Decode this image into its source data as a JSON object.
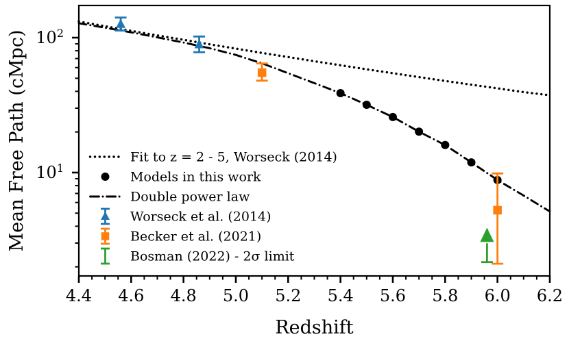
{
  "figure": {
    "background": "#ffffff",
    "frame_color": "#000000"
  },
  "chart_data": {
    "type": "line",
    "title": "",
    "xlabel": "Redshift",
    "ylabel": "Mean Free Path (cMpc)",
    "grid": false,
    "x_axis": {
      "scale": "linear",
      "min": 4.4,
      "max": 6.2,
      "major_ticks": [
        4.4,
        4.6,
        4.8,
        5.0,
        5.2,
        5.4,
        5.6,
        5.8,
        6.0,
        6.2
      ],
      "minor_tick_step": 0.05
    },
    "y_axis": {
      "scale": "log",
      "min": 1.71,
      "max": 173,
      "major_ticks": [
        10,
        100
      ],
      "major_tick_exponents": [
        1,
        2
      ],
      "tick_base": "10",
      "minor_tick_mantissas": [
        2,
        3,
        4,
        5,
        6,
        7,
        8,
        9
      ]
    },
    "series": [
      {
        "key": "worseck-fit-line",
        "name": "Fit to z = 2 - 5, Worseck (2014)",
        "style": "dotted-line",
        "color": "#000000",
        "x": [
          4.4,
          4.5,
          4.6,
          4.7,
          4.8,
          4.9,
          5.0,
          5.1,
          5.2,
          5.3,
          5.4,
          5.5,
          5.6,
          5.7,
          5.8,
          5.9,
          6.0,
          6.1,
          6.2
        ],
        "y": [
          131.9,
          121.6,
          112.4,
          103.9,
          96.4,
          89.3,
          82.9,
          77.1,
          71.8,
          66.9,
          62.4,
          58.3,
          54.5,
          51.0,
          47.8,
          44.8,
          42.1,
          39.5,
          37.4
        ]
      },
      {
        "key": "model-points",
        "name": "Models in this work",
        "style": "scatter-dot",
        "color": "#000000",
        "x": [
          5.4,
          5.5,
          5.6,
          5.7,
          5.8,
          5.9,
          6.0
        ],
        "y": [
          38.8,
          31.8,
          25.8,
          20.1,
          16.0,
          11.9,
          8.8
        ]
      },
      {
        "key": "double-power-law-line",
        "name": "Double power law",
        "style": "dashdot-line",
        "color": "#000000",
        "x": [
          4.4,
          4.5,
          4.6,
          4.7,
          4.8,
          4.9,
          5.0,
          5.1,
          5.2,
          5.3,
          5.4,
          5.5,
          5.6,
          5.7,
          5.8,
          5.9,
          6.0,
          6.1,
          6.2
        ],
        "y": [
          128.0,
          118.5,
          109.5,
          100.5,
          92.0,
          83.5,
          74.5,
          64.5,
          54.5,
          46.0,
          38.8,
          31.8,
          25.8,
          20.1,
          16.0,
          11.9,
          8.8,
          6.75,
          5.15
        ]
      },
      {
        "key": "worseck2014-errorbars",
        "name": "Worseck et al. (2014)",
        "style": "errorbar-triangle",
        "color": "#1f77b4",
        "points": [
          {
            "x": 4.56,
            "y": 126,
            "lo": 113,
            "hi": 141
          },
          {
            "x": 4.86,
            "y": 89,
            "lo": 78,
            "hi": 102
          }
        ]
      },
      {
        "key": "becker2021-errorbars",
        "name": "Becker et al. (2021)",
        "style": "errorbar-square",
        "color": "#ff7f0e",
        "points": [
          {
            "x": 5.1,
            "y": 55,
            "lo": 48,
            "hi": 64.4
          },
          {
            "x": 6.0,
            "y": 5.26,
            "lo": 2.11,
            "hi": 9.85
          }
        ]
      },
      {
        "key": "bosman2022-limit",
        "name": "Bosman (2022) - 2σ limit",
        "style": "lower-limit-arrow",
        "color": "#2ca02c",
        "points": [
          {
            "x": 5.96,
            "bar_bottom": 2.17,
            "head_base": 3.06,
            "arrow_tip": 3.9
          }
        ]
      }
    ],
    "legend": {
      "position": "lower-left",
      "frame": false
    }
  }
}
